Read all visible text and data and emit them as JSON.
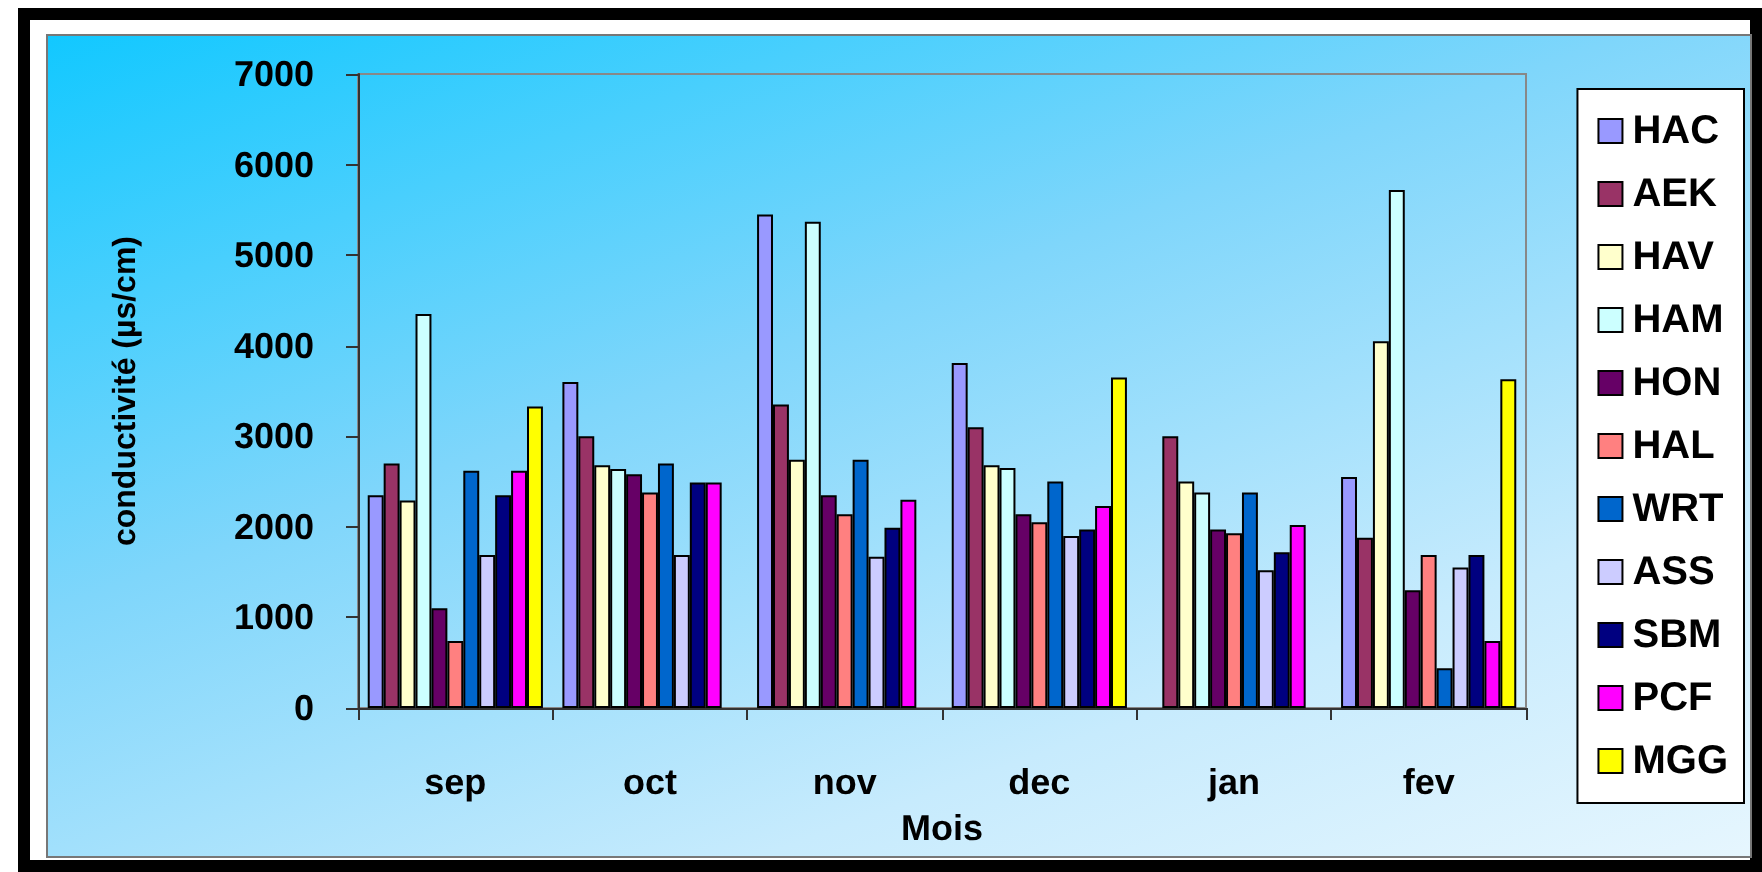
{
  "chart_data": {
    "type": "bar",
    "xlabel": "Mois",
    "ylabel": "conductivité (µs/cm)",
    "categories": [
      "sep",
      "oct",
      "nov",
      "dec",
      "jan",
      "fev"
    ],
    "series": [
      {
        "name": "HAC",
        "color": "#9999ff",
        "values": [
          2350,
          3600,
          5450,
          3810,
          null,
          2550
        ]
      },
      {
        "name": "AEK",
        "color": "#993366",
        "values": [
          2700,
          3000,
          3350,
          3100,
          3000,
          1880
        ]
      },
      {
        "name": "HAV",
        "color": "#ffffcc",
        "values": [
          2290,
          2680,
          2740,
          2680,
          2500,
          4050
        ]
      },
      {
        "name": "HAM",
        "color": "#ccffff",
        "values": [
          4350,
          2640,
          5370,
          2650,
          2380,
          5720
        ]
      },
      {
        "name": "HON",
        "color": "#660066",
        "values": [
          1100,
          2580,
          2350,
          2140,
          1970,
          1300
        ]
      },
      {
        "name": "HAL",
        "color": "#ff8080",
        "values": [
          740,
          2380,
          2140,
          2050,
          1930,
          1690
        ]
      },
      {
        "name": "WRT",
        "color": "#0066cc",
        "values": [
          2620,
          2700,
          2740,
          2500,
          2380,
          440
        ]
      },
      {
        "name": "ASS",
        "color": "#ccccff",
        "values": [
          1690,
          1690,
          1670,
          1900,
          1520,
          1550
        ]
      },
      {
        "name": "SBM",
        "color": "#000080",
        "values": [
          2350,
          2490,
          1990,
          1970,
          1720,
          1690
        ]
      },
      {
        "name": "PCF",
        "color": "#ff00ff",
        "values": [
          2620,
          2490,
          2300,
          2230,
          2020,
          740
        ]
      },
      {
        "name": "MGG",
        "color": "#ffff00",
        "values": [
          3330,
          null,
          null,
          3650,
          null,
          3630
        ]
      }
    ],
    "ylim": [
      0,
      7000
    ],
    "yticks": [
      0,
      1000,
      2000,
      3000,
      4000,
      5000,
      6000,
      7000
    ],
    "grid": false,
    "legend": "right"
  }
}
